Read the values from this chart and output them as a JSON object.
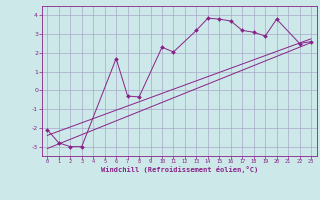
{
  "title": "",
  "xlabel": "Windchill (Refroidissement éolien,°C)",
  "ylabel": "",
  "bg_color": "#cce8e8",
  "grid_color": "#aaaacc",
  "line_color": "#882288",
  "xlim": [
    -0.5,
    23.5
  ],
  "ylim": [
    -3.5,
    4.5
  ],
  "yticks": [
    -3,
    -2,
    -1,
    0,
    1,
    2,
    3,
    4
  ],
  "xticks": [
    0,
    1,
    2,
    3,
    4,
    5,
    6,
    7,
    8,
    9,
    10,
    11,
    12,
    13,
    14,
    15,
    16,
    17,
    18,
    19,
    20,
    21,
    22,
    23
  ],
  "scatter_x": [
    0,
    1,
    2,
    3,
    6,
    7,
    8,
    10,
    11,
    13,
    14,
    15,
    16,
    17,
    18,
    19,
    20,
    22,
    23
  ],
  "scatter_y": [
    -2.1,
    -2.8,
    -3.0,
    -3.0,
    1.7,
    -0.3,
    -0.35,
    2.3,
    2.05,
    3.2,
    3.85,
    3.8,
    3.7,
    3.2,
    3.1,
    2.9,
    3.8,
    2.5,
    2.6
  ],
  "line1_x": [
    0,
    23
  ],
  "line1_y": [
    -3.1,
    2.55
  ],
  "line2_x": [
    0,
    23
  ],
  "line2_y": [
    -2.4,
    2.75
  ]
}
